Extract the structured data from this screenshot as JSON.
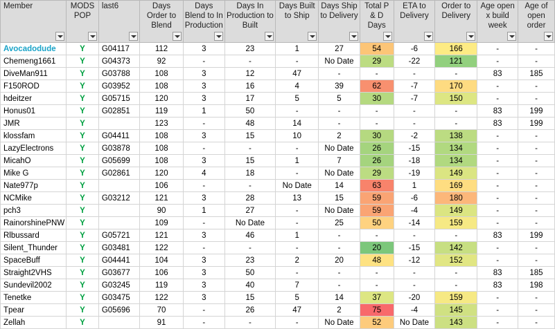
{
  "headers": {
    "member": "Member",
    "mods": "MODS POP",
    "last6": "last6",
    "order_blend": "Days Order to Blend",
    "blend_prod": "Days Blend to In Production",
    "prod_built": "Days In Production to Built",
    "built_ship": "Days Built to Ship",
    "ship_deliv": "Days Ship to Delivery",
    "total_pd": "Total P & D Days",
    "eta": "ETA to Delivery",
    "order_deliv": "Order to Delivery",
    "age_build": "Age open x build week",
    "age_order": "Age of open order"
  },
  "colors": {
    "header_bg": "#dcdcdc",
    "member_highlight": "#1aa3c8",
    "mods_y": "#00a040"
  },
  "rows": [
    {
      "member": "Avocadodude",
      "hl": true,
      "mods": "Y",
      "last6": "G04117",
      "ob": "112",
      "bp": "3",
      "pb": "23",
      "bs": "1",
      "sd": "27",
      "tpd": "54",
      "tpd_c": "#fcc577",
      "eta": "-6",
      "od": "166",
      "od_c": "#fdeb84",
      "ab": "-",
      "ao": "-"
    },
    {
      "member": "Chemeng1661",
      "hl": false,
      "mods": "Y",
      "last6": "G04373",
      "ob": "92",
      "bp": "-",
      "pb": "-",
      "bs": "-",
      "sd": "No Date",
      "tpd": "29",
      "tpd_c": "#bcdc82",
      "eta": "-22",
      "od": "121",
      "od_c": "#92d07e",
      "ab": "-",
      "ao": "-"
    },
    {
      "member": "DiveMan911",
      "hl": false,
      "mods": "Y",
      "last6": "G03788",
      "ob": "108",
      "bp": "3",
      "pb": "12",
      "bs": "47",
      "sd": "-",
      "tpd": "-",
      "tpd_c": "",
      "eta": "-",
      "od": "-",
      "od_c": "",
      "ab": "83",
      "ao": "185"
    },
    {
      "member": "F150ROD",
      "hl": false,
      "mods": "Y",
      "last6": "G03952",
      "ob": "108",
      "bp": "3",
      "pb": "16",
      "bs": "4",
      "sd": "39",
      "tpd": "62",
      "tpd_c": "#f8906f",
      "eta": "-7",
      "od": "170",
      "od_c": "#fedb81",
      "ab": "-",
      "ao": "-"
    },
    {
      "member": "hdeitzer",
      "hl": false,
      "mods": "Y",
      "last6": "G05715",
      "ob": "120",
      "bp": "3",
      "pb": "17",
      "bs": "5",
      "sd": "5",
      "tpd": "30",
      "tpd_c": "#b5d980",
      "eta": "-7",
      "od": "150",
      "od_c": "#dde683",
      "ab": "-",
      "ao": "-"
    },
    {
      "member": "Honus01",
      "hl": false,
      "mods": "Y",
      "last6": "G02851",
      "ob": "119",
      "bp": "1",
      "pb": "50",
      "bs": "-",
      "sd": "-",
      "tpd": "-",
      "tpd_c": "",
      "eta": "-",
      "od": "-",
      "od_c": "",
      "ab": "83",
      "ao": "199"
    },
    {
      "member": "JMR",
      "hl": false,
      "mods": "Y",
      "last6": "",
      "ob": "123",
      "bp": "-",
      "pb": "48",
      "bs": "14",
      "sd": "-",
      "tpd": "-",
      "tpd_c": "",
      "eta": "-",
      "od": "-",
      "od_c": "",
      "ab": "83",
      "ao": "199"
    },
    {
      "member": "klossfam",
      "hl": false,
      "mods": "Y",
      "last6": "G04411",
      "ob": "108",
      "bp": "3",
      "pb": "15",
      "bs": "10",
      "sd": "2",
      "tpd": "30",
      "tpd_c": "#b5d980",
      "eta": "-2",
      "od": "138",
      "od_c": "#bcdc82",
      "ab": "-",
      "ao": "-"
    },
    {
      "member": "LazyElectrons",
      "hl": false,
      "mods": "Y",
      "last6": "G03878",
      "ob": "108",
      "bp": "-",
      "pb": "-",
      "bs": "-",
      "sd": "No Date",
      "tpd": "26",
      "tpd_c": "#a5d47e",
      "eta": "-15",
      "od": "134",
      "od_c": "#b1d980",
      "ab": "-",
      "ao": "-"
    },
    {
      "member": "MicahO",
      "hl": false,
      "mods": "Y",
      "last6": "G05699",
      "ob": "108",
      "bp": "3",
      "pb": "15",
      "bs": "1",
      "sd": "7",
      "tpd": "26",
      "tpd_c": "#a5d47e",
      "eta": "-18",
      "od": "134",
      "od_c": "#b1d980",
      "ab": "-",
      "ao": "-"
    },
    {
      "member": "Mike G",
      "hl": false,
      "mods": "Y",
      "last6": "G02861",
      "ob": "120",
      "bp": "4",
      "pb": "18",
      "bs": "-",
      "sd": "No Date",
      "tpd": "29",
      "tpd_c": "#bcdc82",
      "eta": "-19",
      "od": "149",
      "od_c": "#dbe582",
      "ab": "-",
      "ao": "-"
    },
    {
      "member": "Nate977p",
      "hl": false,
      "mods": "Y",
      "last6": "",
      "ob": "106",
      "bp": "-",
      "pb": "-",
      "bs": "No Date",
      "sd": "14",
      "tpd": "63",
      "tpd_c": "#f8836b",
      "eta": "1",
      "od": "169",
      "od_c": "#fedd81",
      "ab": "-",
      "ao": "-"
    },
    {
      "member": "NCMike",
      "hl": false,
      "mods": "Y",
      "last6": "G03212",
      "ob": "121",
      "bp": "3",
      "pb": "28",
      "bs": "13",
      "sd": "15",
      "tpd": "59",
      "tpd_c": "#faa474",
      "eta": "-6",
      "od": "180",
      "od_c": "#fcb77a",
      "ab": "-",
      "ao": "-"
    },
    {
      "member": "pch3",
      "hl": false,
      "mods": "Y",
      "last6": "",
      "ob": "90",
      "bp": "1",
      "pb": "27",
      "bs": "-",
      "sd": "No Date",
      "tpd": "59",
      "tpd_c": "#faa474",
      "eta": "-4",
      "od": "149",
      "od_c": "#dbe582",
      "ab": "-",
      "ao": "-"
    },
    {
      "member": "RainorshinePNW",
      "hl": false,
      "mods": "Y",
      "last6": "",
      "ob": "109",
      "bp": "-",
      "pb": "No Date",
      "bs": "-",
      "sd": "25",
      "tpd": "50",
      "tpd_c": "#fed280",
      "eta": "-14",
      "od": "159",
      "od_c": "#f6e984",
      "ab": "-",
      "ao": "-"
    },
    {
      "member": "Rlbussard",
      "hl": false,
      "mods": "Y",
      "last6": "G05721",
      "ob": "121",
      "bp": "3",
      "pb": "46",
      "bs": "1",
      "sd": "-",
      "tpd": "-",
      "tpd_c": "",
      "eta": "-",
      "od": "-",
      "od_c": "",
      "ab": "83",
      "ao": "199"
    },
    {
      "member": "Silent_Thunder",
      "hl": false,
      "mods": "Y",
      "last6": "G03481",
      "ob": "122",
      "bp": "-",
      "pb": "-",
      "bs": "-",
      "sd": "-",
      "tpd": "20",
      "tpd_c": "#7cc77b",
      "eta": "-15",
      "od": "142",
      "od_c": "#c7df82",
      "ab": "-",
      "ao": "-"
    },
    {
      "member": "SpaceBuff",
      "hl": false,
      "mods": "Y",
      "last6": "G04441",
      "ob": "104",
      "bp": "3",
      "pb": "23",
      "bs": "2",
      "sd": "20",
      "tpd": "48",
      "tpd_c": "#fee282",
      "eta": "-12",
      "od": "152",
      "od_c": "#e1e683",
      "ab": "-",
      "ao": "-"
    },
    {
      "member": "Straight2VHS",
      "hl": false,
      "mods": "Y",
      "last6": "G03677",
      "ob": "106",
      "bp": "3",
      "pb": "50",
      "bs": "-",
      "sd": "-",
      "tpd": "-",
      "tpd_c": "",
      "eta": "-",
      "od": "-",
      "od_c": "",
      "ab": "83",
      "ao": "185"
    },
    {
      "member": "Sundevil2002",
      "hl": false,
      "mods": "Y",
      "last6": "G03245",
      "ob": "119",
      "bp": "3",
      "pb": "40",
      "bs": "7",
      "sd": "-",
      "tpd": "-",
      "tpd_c": "",
      "eta": "-",
      "od": "-",
      "od_c": "",
      "ab": "83",
      "ao": "198"
    },
    {
      "member": "Tenetke",
      "hl": false,
      "mods": "Y",
      "last6": "G03475",
      "ob": "122",
      "bp": "3",
      "pb": "15",
      "bs": "5",
      "sd": "14",
      "tpd": "37",
      "tpd_c": "#dde683",
      "eta": "-20",
      "od": "159",
      "od_c": "#f6e984",
      "ab": "-",
      "ao": "-"
    },
    {
      "member": "Tpear",
      "hl": false,
      "mods": "Y",
      "last6": "G05696",
      "ob": "70",
      "bp": "-",
      "pb": "26",
      "bs": "47",
      "sd": "2",
      "tpd": "75",
      "tpd_c": "#f8696b",
      "eta": "-4",
      "od": "145",
      "od_c": "#d0e182",
      "ab": "-",
      "ao": "-"
    },
    {
      "member": "Zellah",
      "hl": false,
      "mods": "Y",
      "last6": "",
      "ob": "91",
      "bp": "-",
      "pb": "-",
      "bs": "-",
      "sd": "No Date",
      "tpd": "52",
      "tpd_c": "#fdcb7c",
      "eta": "No Date",
      "od": "143",
      "od_c": "#cce082",
      "ab": "-",
      "ao": "-"
    }
  ]
}
